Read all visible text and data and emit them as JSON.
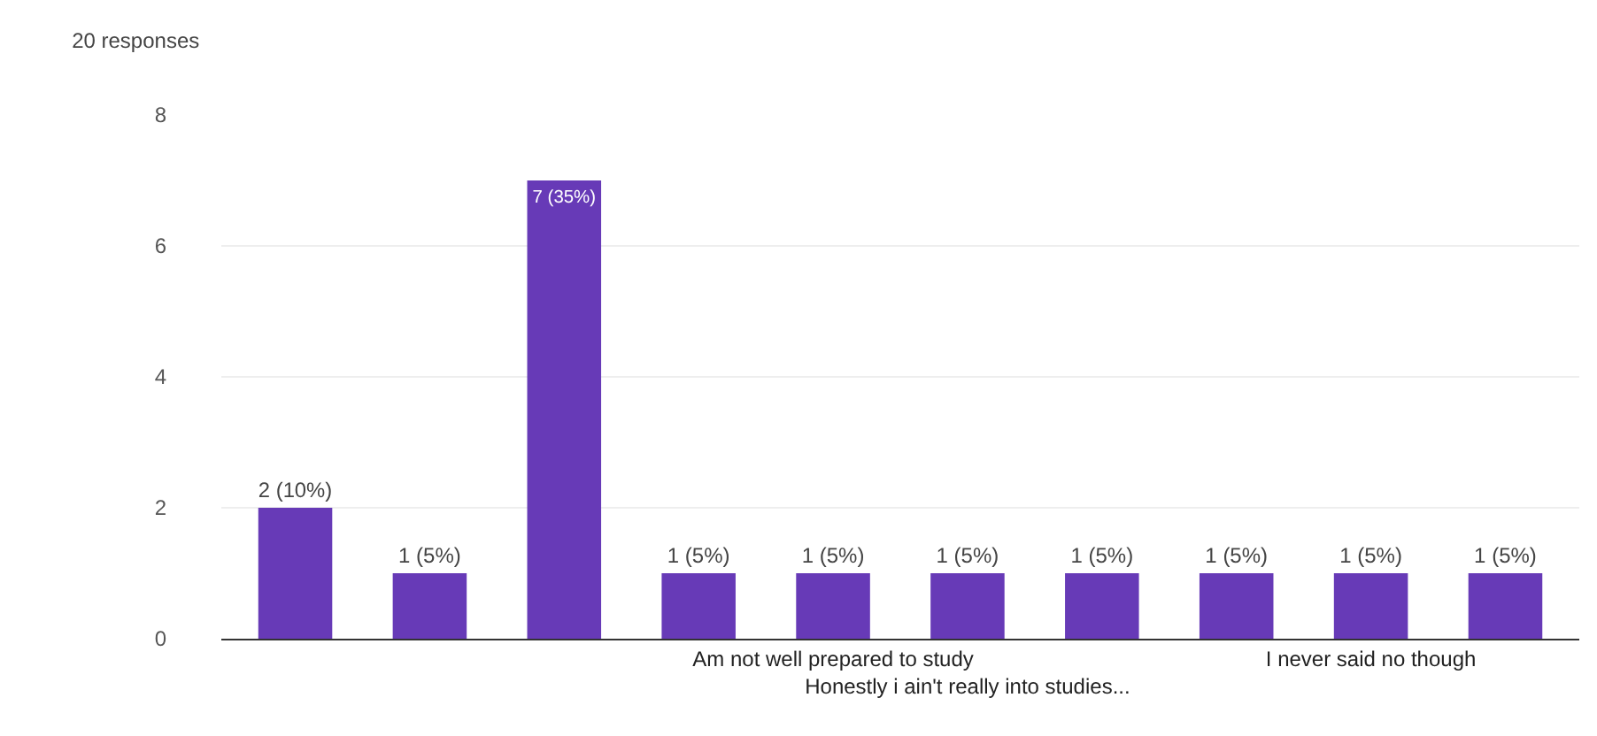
{
  "chart_data": {
    "type": "bar",
    "title": "20 responses",
    "categories": [
      null,
      null,
      null,
      null,
      "Am not well prepared to study",
      "Honestly i ain't really into studies...",
      null,
      null,
      "I never said no though",
      null
    ],
    "values": [
      2,
      1,
      7,
      1,
      1,
      1,
      1,
      1,
      1,
      1
    ],
    "value_labels": [
      "2 (10%)",
      "1 (5%)",
      "7 (35%)",
      "1 (5%)",
      "1 (5%)",
      "1 (5%)",
      "1 (5%)",
      "1 (5%)",
      "1 (5%)",
      "1 (5%)"
    ],
    "color": "#673ab7",
    "ylim": [
      0,
      8
    ],
    "yticks": [
      0,
      2,
      4,
      6,
      8
    ],
    "grid": "y",
    "legend": false
  }
}
